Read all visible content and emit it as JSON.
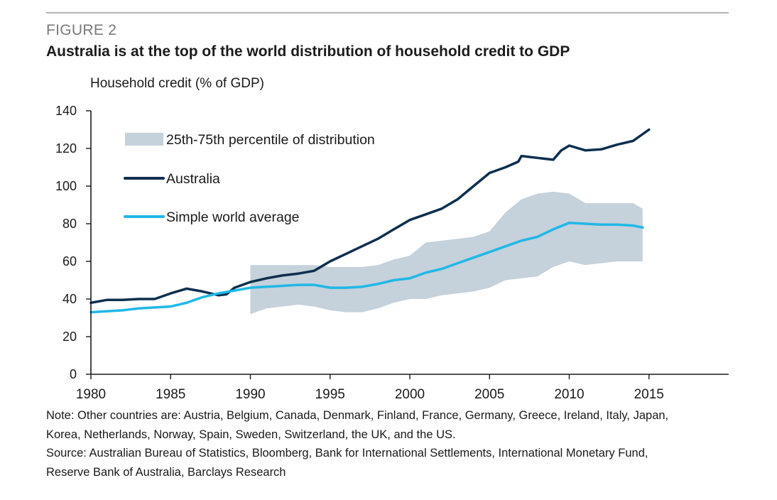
{
  "figure_label": "FIGURE 2",
  "notes": [
    "Note: Other countries are: Austria, Belgium, Canada, Denmark, Finland, France, Germany, Greece, Ireland, Italy, Japan,",
    "Korea, Netherlands, Norway, Spain, Sweden, Switzerland, the UK, and the US.",
    "Source: Australian Bureau of Statistics, Bloomberg, Bank for International Settlements, International Monetary Fund,",
    "Reserve Bank of Australia, Barclays Research"
  ],
  "colors": {
    "band": "#c5d1db",
    "australia": "#0e2f4e",
    "world": "#20b8e6",
    "axis": "#1a1a1a"
  },
  "chart_data": {
    "type": "line",
    "title": "Australia is at the top of the world distribution of household credit to GDP",
    "ylabel": "Household credit (% of GDP)",
    "xlabel": "",
    "xlim": [
      1980,
      2020
    ],
    "ylim": [
      0,
      140
    ],
    "xticks": [
      1980,
      1985,
      1990,
      1995,
      2000,
      2005,
      2010,
      2015
    ],
    "yticks": [
      0,
      20,
      40,
      60,
      80,
      100,
      120,
      140
    ],
    "legend": [
      {
        "key": "band",
        "label": "25th-75th percentile of distribution"
      },
      {
        "key": "australia",
        "label": "Australia"
      },
      {
        "key": "world",
        "label": "Simple world average"
      }
    ],
    "band": {
      "name": "25th-75th percentile of distribution",
      "x": [
        1990,
        1991,
        1992,
        1993,
        1994,
        1995,
        1996,
        1997,
        1998,
        1999,
        2000,
        2001,
        2002,
        2003,
        2004,
        2005,
        2006,
        2007,
        2008,
        2009,
        2010,
        2011,
        2012,
        2013,
        2014,
        2014.6
      ],
      "upper": [
        58,
        58,
        58,
        58,
        58,
        57,
        57,
        57,
        58,
        61,
        63,
        70,
        71,
        72,
        73,
        76,
        86,
        93,
        96,
        97,
        96,
        91,
        91,
        91,
        91,
        88
      ],
      "lower": [
        32,
        35,
        36,
        37,
        36,
        34,
        33,
        33,
        35,
        38,
        40,
        40,
        42,
        43,
        44,
        46,
        50,
        51,
        52,
        57,
        60,
        58,
        59,
        60,
        60,
        60
      ]
    },
    "series": [
      {
        "name": "Australia",
        "x": [
          1980,
          1981,
          1982,
          1983,
          1984,
          1985,
          1986,
          1987,
          1988,
          1988.5,
          1989,
          1990,
          1991,
          1992,
          1993,
          1994,
          1995,
          1996,
          1997,
          1998,
          1999,
          2000,
          2001,
          2002,
          2003,
          2004,
          2005,
          2006,
          2006.8,
          2007,
          2008,
          2009,
          2009.5,
          2010,
          2011,
          2012,
          2013,
          2014,
          2015
        ],
        "values": [
          38,
          39.5,
          39.5,
          40,
          40,
          43,
          45.5,
          44,
          42,
          42.5,
          46,
          49,
          51,
          52.5,
          53.5,
          55,
          60,
          64,
          68,
          72,
          77,
          82,
          85,
          88,
          93,
          100,
          107,
          110,
          113,
          116,
          115,
          114,
          119,
          121.5,
          119,
          119.5,
          122,
          124,
          130
        ]
      },
      {
        "name": "Simple world average",
        "x": [
          1980,
          1981,
          1982,
          1983,
          1984,
          1985,
          1986,
          1987,
          1988,
          1989,
          1990,
          1991,
          1992,
          1993,
          1994,
          1995,
          1996,
          1997,
          1998,
          1999,
          2000,
          2001,
          2002,
          2003,
          2004,
          2005,
          2006,
          2007,
          2008,
          2009,
          2010,
          2011,
          2012,
          2013,
          2014,
          2014.6
        ],
        "values": [
          33,
          33.5,
          34,
          35,
          35.5,
          36,
          38,
          41,
          43,
          44.5,
          46,
          46.5,
          47,
          47.5,
          47.5,
          46,
          46,
          46.5,
          48,
          50,
          51,
          54,
          56,
          59,
          62,
          65,
          68,
          71,
          73,
          77,
          80.5,
          80,
          79.5,
          79.5,
          79,
          78
        ]
      }
    ]
  }
}
